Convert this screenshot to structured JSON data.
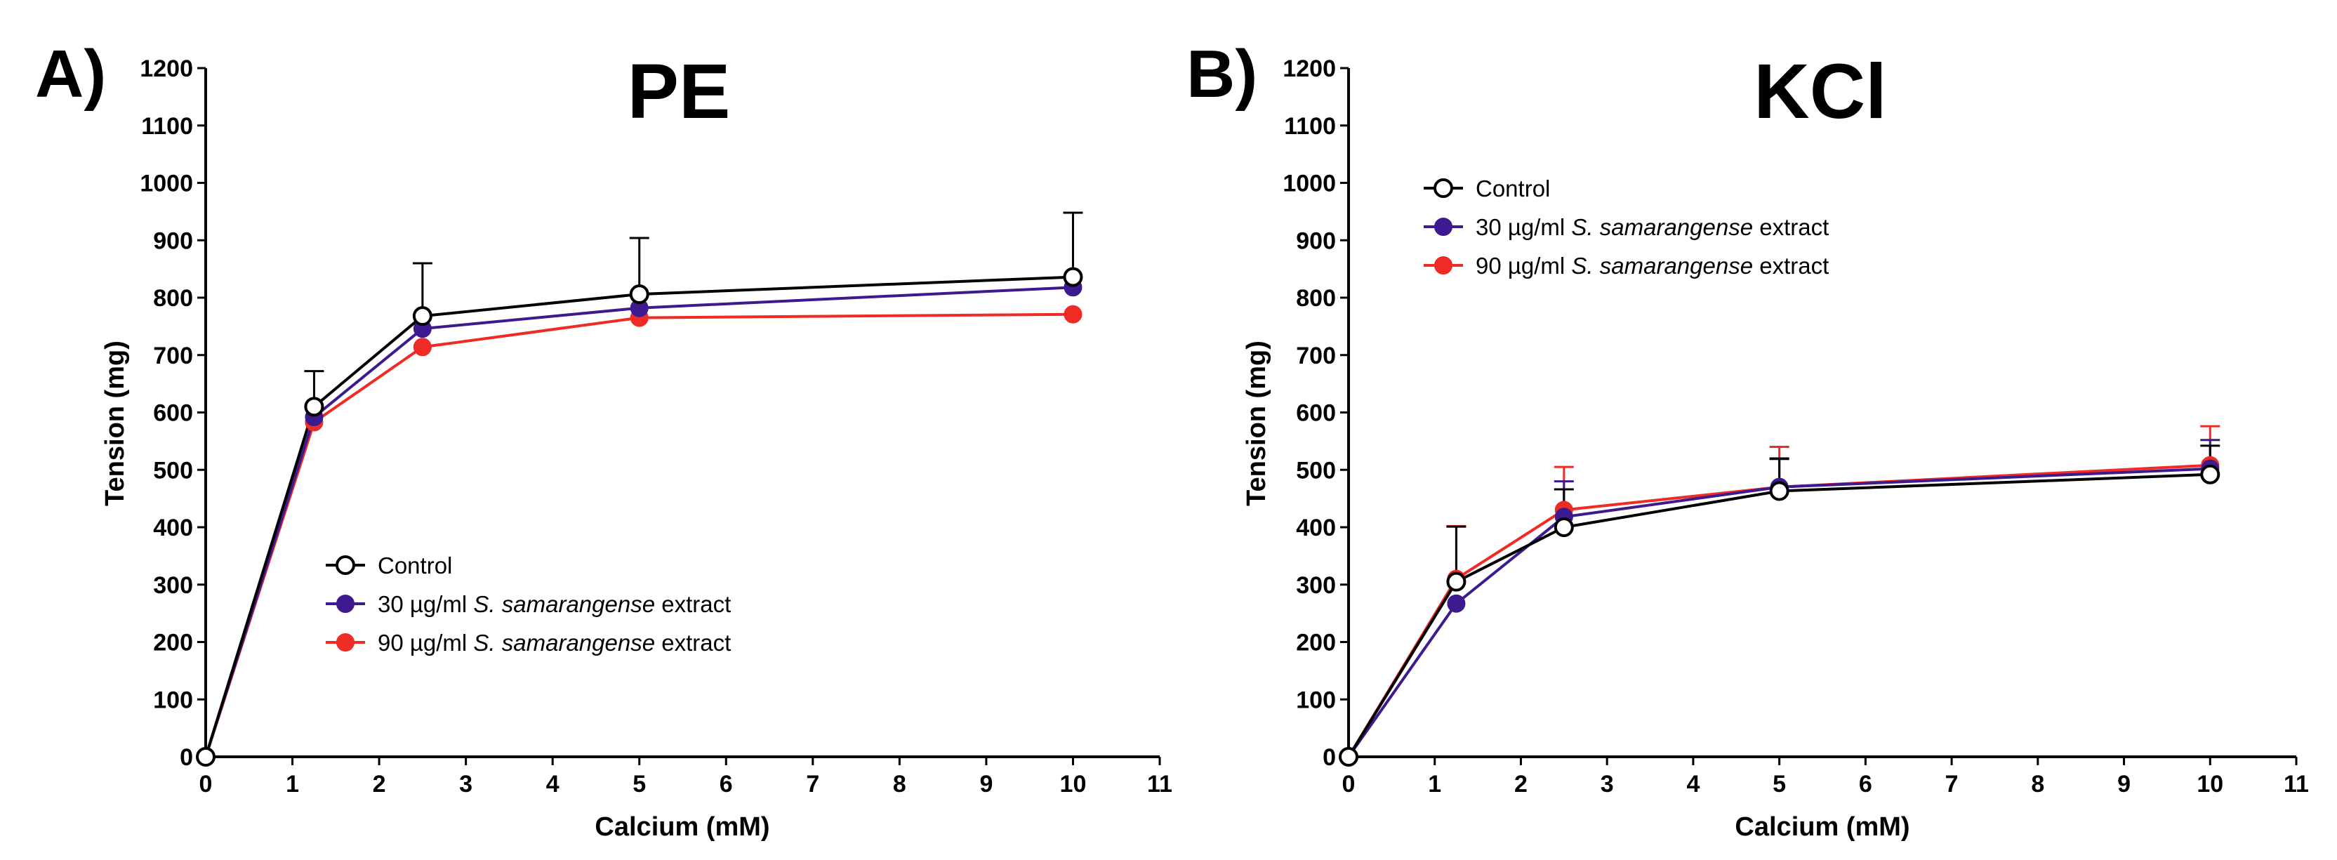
{
  "chart_data": [
    {
      "type": "line",
      "panel_label": "A)",
      "title": "PE",
      "xlabel": "Calcium (mM)",
      "ylabel": "Tension (mg)",
      "xlim": [
        0,
        11
      ],
      "ylim": [
        0,
        1200
      ],
      "xticks": [
        0,
        1,
        2,
        3,
        4,
        5,
        6,
        7,
        8,
        9,
        10,
        11
      ],
      "yticks": [
        0,
        100,
        200,
        300,
        400,
        500,
        600,
        700,
        800,
        900,
        1000,
        1100,
        1200
      ],
      "legend_position": "lower-middle",
      "x": [
        0,
        1.25,
        2.5,
        5,
        10
      ],
      "series": [
        {
          "name": "Control",
          "label_parts": [
            "Control"
          ],
          "color": "#000000",
          "marker": "open-circle",
          "values": [
            0,
            610,
            768,
            806,
            836
          ],
          "errors": [
            0,
            62,
            92,
            98,
            112
          ]
        },
        {
          "name": "30 µg/ml S. samarangense extract",
          "label_parts": [
            "30 µg/ml ",
            "S. samarangense",
            " extract"
          ],
          "color": "#3d1a8f",
          "marker": "filled-circle",
          "values": [
            0,
            592,
            746,
            782,
            818
          ],
          "errors": [
            0,
            0,
            0,
            0,
            0
          ]
        },
        {
          "name": "90 µg/ml S. samarangense extract",
          "label_parts": [
            "90 µg/ml ",
            "S. samarangense",
            " extract"
          ],
          "color": "#ee2b24",
          "marker": "filled-circle",
          "values": [
            0,
            583,
            714,
            765,
            771
          ],
          "errors": [
            0,
            0,
            0,
            0,
            0
          ]
        }
      ]
    },
    {
      "type": "line",
      "panel_label": "B)",
      "title": "KCl",
      "xlabel": "Calcium (mM)",
      "ylabel": "Tension (mg)",
      "xlim": [
        0,
        11
      ],
      "ylim": [
        0,
        1200
      ],
      "xticks": [
        0,
        1,
        2,
        3,
        4,
        5,
        6,
        7,
        8,
        9,
        10,
        11
      ],
      "yticks": [
        0,
        100,
        200,
        300,
        400,
        500,
        600,
        700,
        800,
        900,
        1000,
        1100,
        1200
      ],
      "legend_position": "top-left",
      "x": [
        0,
        1.25,
        2.5,
        5,
        10
      ],
      "series": [
        {
          "name": "Control",
          "label_parts": [
            "Control"
          ],
          "color": "#000000",
          "marker": "open-circle",
          "values": [
            0,
            305,
            400,
            463,
            492
          ],
          "errors": [
            0,
            96,
            66,
            56,
            50
          ]
        },
        {
          "name": "30 µg/ml S. samarangense extract",
          "label_parts": [
            "30 µg/ml ",
            "S. samarangense",
            " extract"
          ],
          "color": "#3d1a8f",
          "marker": "filled-circle",
          "values": [
            0,
            267,
            418,
            470,
            502
          ],
          "errors": [
            0,
            0,
            62,
            50,
            50
          ]
        },
        {
          "name": "90 µg/ml S. samarangense extract",
          "label_parts": [
            "90 µg/ml ",
            "S. samarangense",
            " extract"
          ],
          "color": "#ee2b24",
          "marker": "filled-circle",
          "values": [
            0,
            310,
            430,
            470,
            508
          ],
          "errors": [
            0,
            92,
            75,
            70,
            68
          ]
        }
      ]
    }
  ]
}
